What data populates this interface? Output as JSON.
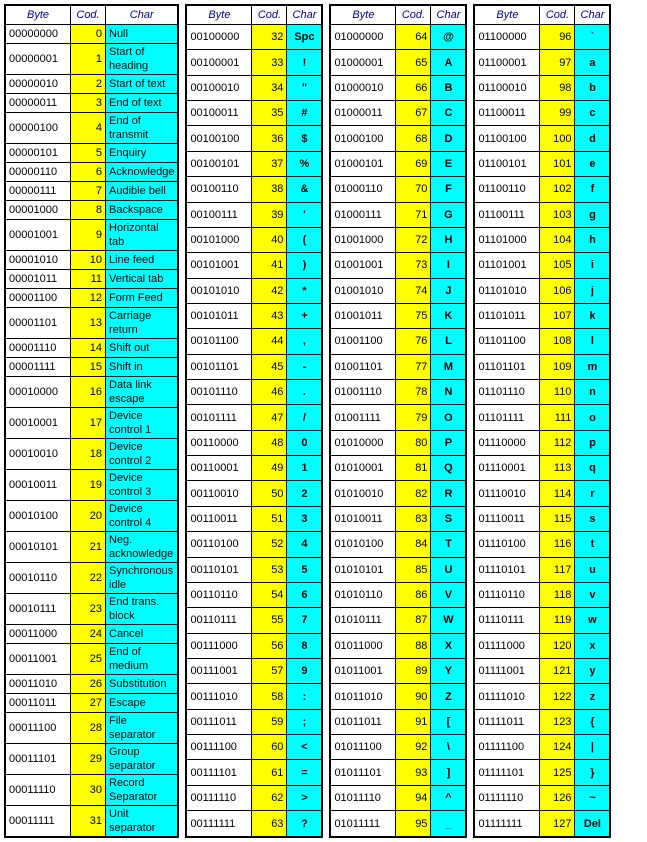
{
  "headers": {
    "byte": "Byte",
    "code": "Cod.",
    "char": "Char"
  },
  "style": {
    "byte_bg": "#ffffff",
    "code_bg": "#ffff00",
    "char_bg": "#00ffff",
    "header_color": "#000099",
    "border_color": "#000000",
    "font_size": 11
  },
  "blocks": [
    {
      "char_centered": false,
      "char_bold": false,
      "rows": [
        {
          "b": "00000000",
          "c": 0,
          "ch": "Null"
        },
        {
          "b": "00000001",
          "c": 1,
          "ch": "Start of heading"
        },
        {
          "b": "00000010",
          "c": 2,
          "ch": "Start of text"
        },
        {
          "b": "00000011",
          "c": 3,
          "ch": "End of text"
        },
        {
          "b": "00000100",
          "c": 4,
          "ch": "End of transmit"
        },
        {
          "b": "00000101",
          "c": 5,
          "ch": "Enquiry"
        },
        {
          "b": "00000110",
          "c": 6,
          "ch": "Acknowledge"
        },
        {
          "b": "00000111",
          "c": 7,
          "ch": "Audible bell"
        },
        {
          "b": "00001000",
          "c": 8,
          "ch": "Backspace"
        },
        {
          "b": "00001001",
          "c": 9,
          "ch": "Horizontal tab"
        },
        {
          "b": "00001010",
          "c": 10,
          "ch": "Line feed"
        },
        {
          "b": "00001011",
          "c": 11,
          "ch": "Vertical tab"
        },
        {
          "b": "00001100",
          "c": 12,
          "ch": "Form Feed"
        },
        {
          "b": "00001101",
          "c": 13,
          "ch": "Carriage return"
        },
        {
          "b": "00001110",
          "c": 14,
          "ch": "Shift out"
        },
        {
          "b": "00001111",
          "c": 15,
          "ch": "Shift in"
        },
        {
          "b": "00010000",
          "c": 16,
          "ch": "Data link escape"
        },
        {
          "b": "00010001",
          "c": 17,
          "ch": "Device control 1"
        },
        {
          "b": "00010010",
          "c": 18,
          "ch": "Device control 2"
        },
        {
          "b": "00010011",
          "c": 19,
          "ch": "Device control 3"
        },
        {
          "b": "00010100",
          "c": 20,
          "ch": "Device control 4"
        },
        {
          "b": "00010101",
          "c": 21,
          "ch": "Neg. acknowledge"
        },
        {
          "b": "00010110",
          "c": 22,
          "ch": "Synchronous idle"
        },
        {
          "b": "00010111",
          "c": 23,
          "ch": "End trans. block"
        },
        {
          "b": "00011000",
          "c": 24,
          "ch": "Cancel"
        },
        {
          "b": "00011001",
          "c": 25,
          "ch": "End of medium"
        },
        {
          "b": "00011010",
          "c": 26,
          "ch": "Substitution"
        },
        {
          "b": "00011011",
          "c": 27,
          "ch": "Escape"
        },
        {
          "b": "00011100",
          "c": 28,
          "ch": "File separator"
        },
        {
          "b": "00011101",
          "c": 29,
          "ch": "Group separator"
        },
        {
          "b": "00011110",
          "c": 30,
          "ch": "Record Separator"
        },
        {
          "b": "00011111",
          "c": 31,
          "ch": "Unit separator"
        }
      ]
    },
    {
      "char_centered": true,
      "char_bold": true,
      "rows": [
        {
          "b": "00100000",
          "c": 32,
          "ch": "Spc"
        },
        {
          "b": "00100001",
          "c": 33,
          "ch": "!"
        },
        {
          "b": "00100010",
          "c": 34,
          "ch": "\""
        },
        {
          "b": "00100011",
          "c": 35,
          "ch": "#"
        },
        {
          "b": "00100100",
          "c": 36,
          "ch": "$"
        },
        {
          "b": "00100101",
          "c": 37,
          "ch": "%"
        },
        {
          "b": "00100110",
          "c": 38,
          "ch": "&"
        },
        {
          "b": "00100111",
          "c": 39,
          "ch": "'"
        },
        {
          "b": "00101000",
          "c": 40,
          "ch": "("
        },
        {
          "b": "00101001",
          "c": 41,
          "ch": ")"
        },
        {
          "b": "00101010",
          "c": 42,
          "ch": "*"
        },
        {
          "b": "00101011",
          "c": 43,
          "ch": "+"
        },
        {
          "b": "00101100",
          "c": 44,
          "ch": ","
        },
        {
          "b": "00101101",
          "c": 45,
          "ch": "-"
        },
        {
          "b": "00101110",
          "c": 46,
          "ch": "."
        },
        {
          "b": "00101111",
          "c": 47,
          "ch": "/"
        },
        {
          "b": "00110000",
          "c": 48,
          "ch": "0"
        },
        {
          "b": "00110001",
          "c": 49,
          "ch": "1"
        },
        {
          "b": "00110010",
          "c": 50,
          "ch": "2"
        },
        {
          "b": "00110011",
          "c": 51,
          "ch": "3"
        },
        {
          "b": "00110100",
          "c": 52,
          "ch": "4"
        },
        {
          "b": "00110101",
          "c": 53,
          "ch": "5"
        },
        {
          "b": "00110110",
          "c": 54,
          "ch": "6"
        },
        {
          "b": "00110111",
          "c": 55,
          "ch": "7"
        },
        {
          "b": "00111000",
          "c": 56,
          "ch": "8"
        },
        {
          "b": "00111001",
          "c": 57,
          "ch": "9"
        },
        {
          "b": "00111010",
          "c": 58,
          "ch": ":"
        },
        {
          "b": "00111011",
          "c": 59,
          "ch": ";"
        },
        {
          "b": "00111100",
          "c": 60,
          "ch": "<"
        },
        {
          "b": "00111101",
          "c": 61,
          "ch": "="
        },
        {
          "b": "00111110",
          "c": 62,
          "ch": ">"
        },
        {
          "b": "00111111",
          "c": 63,
          "ch": "?"
        }
      ]
    },
    {
      "char_centered": true,
      "char_bold": true,
      "rows": [
        {
          "b": "01000000",
          "c": 64,
          "ch": "@"
        },
        {
          "b": "01000001",
          "c": 65,
          "ch": "A"
        },
        {
          "b": "01000010",
          "c": 66,
          "ch": "B"
        },
        {
          "b": "01000011",
          "c": 67,
          "ch": "C"
        },
        {
          "b": "01000100",
          "c": 68,
          "ch": "D"
        },
        {
          "b": "01000101",
          "c": 69,
          "ch": "E"
        },
        {
          "b": "01000110",
          "c": 70,
          "ch": "F"
        },
        {
          "b": "01000111",
          "c": 71,
          "ch": "G"
        },
        {
          "b": "01001000",
          "c": 72,
          "ch": "H"
        },
        {
          "b": "01001001",
          "c": 73,
          "ch": "I"
        },
        {
          "b": "01001010",
          "c": 74,
          "ch": "J"
        },
        {
          "b": "01001011",
          "c": 75,
          "ch": "K"
        },
        {
          "b": "01001100",
          "c": 76,
          "ch": "L"
        },
        {
          "b": "01001101",
          "c": 77,
          "ch": "M"
        },
        {
          "b": "01001110",
          "c": 78,
          "ch": "N"
        },
        {
          "b": "01001111",
          "c": 79,
          "ch": "O"
        },
        {
          "b": "01010000",
          "c": 80,
          "ch": "P"
        },
        {
          "b": "01010001",
          "c": 81,
          "ch": "Q"
        },
        {
          "b": "01010010",
          "c": 82,
          "ch": "R"
        },
        {
          "b": "01010011",
          "c": 83,
          "ch": "S"
        },
        {
          "b": "01010100",
          "c": 84,
          "ch": "T"
        },
        {
          "b": "01010101",
          "c": 85,
          "ch": "U"
        },
        {
          "b": "01010110",
          "c": 86,
          "ch": "V"
        },
        {
          "b": "01010111",
          "c": 87,
          "ch": "W"
        },
        {
          "b": "01011000",
          "c": 88,
          "ch": "X"
        },
        {
          "b": "01011001",
          "c": 89,
          "ch": "Y"
        },
        {
          "b": "01011010",
          "c": 90,
          "ch": "Z"
        },
        {
          "b": "01011011",
          "c": 91,
          "ch": "["
        },
        {
          "b": "01011100",
          "c": 92,
          "ch": "\\"
        },
        {
          "b": "01011101",
          "c": 93,
          "ch": "]"
        },
        {
          "b": "01011110",
          "c": 94,
          "ch": "^"
        },
        {
          "b": "01011111",
          "c": 95,
          "ch": "_"
        }
      ]
    },
    {
      "char_centered": true,
      "char_bold": true,
      "rows": [
        {
          "b": "01100000",
          "c": 96,
          "ch": "`"
        },
        {
          "b": "01100001",
          "c": 97,
          "ch": "a"
        },
        {
          "b": "01100010",
          "c": 98,
          "ch": "b"
        },
        {
          "b": "01100011",
          "c": 99,
          "ch": "c"
        },
        {
          "b": "01100100",
          "c": 100,
          "ch": "d"
        },
        {
          "b": "01100101",
          "c": 101,
          "ch": "e"
        },
        {
          "b": "01100110",
          "c": 102,
          "ch": "f"
        },
        {
          "b": "01100111",
          "c": 103,
          "ch": "g"
        },
        {
          "b": "01101000",
          "c": 104,
          "ch": "h"
        },
        {
          "b": "01101001",
          "c": 105,
          "ch": "i"
        },
        {
          "b": "01101010",
          "c": 106,
          "ch": "j"
        },
        {
          "b": "01101011",
          "c": 107,
          "ch": "k"
        },
        {
          "b": "01101100",
          "c": 108,
          "ch": "l"
        },
        {
          "b": "01101101",
          "c": 109,
          "ch": "m"
        },
        {
          "b": "01101110",
          "c": 110,
          "ch": "n"
        },
        {
          "b": "01101111",
          "c": 111,
          "ch": "o"
        },
        {
          "b": "01110000",
          "c": 112,
          "ch": "p"
        },
        {
          "b": "01110001",
          "c": 113,
          "ch": "q"
        },
        {
          "b": "01110010",
          "c": 114,
          "ch": "r"
        },
        {
          "b": "01110011",
          "c": 115,
          "ch": "s"
        },
        {
          "b": "01110100",
          "c": 116,
          "ch": "t"
        },
        {
          "b": "01110101",
          "c": 117,
          "ch": "u"
        },
        {
          "b": "01110110",
          "c": 118,
          "ch": "v"
        },
        {
          "b": "01110111",
          "c": 119,
          "ch": "w"
        },
        {
          "b": "01111000",
          "c": 120,
          "ch": "x"
        },
        {
          "b": "01111001",
          "c": 121,
          "ch": "y"
        },
        {
          "b": "01111010",
          "c": 122,
          "ch": "z"
        },
        {
          "b": "01111011",
          "c": 123,
          "ch": "{"
        },
        {
          "b": "01111100",
          "c": 124,
          "ch": "|"
        },
        {
          "b": "01111101",
          "c": 125,
          "ch": "}"
        },
        {
          "b": "01111110",
          "c": 126,
          "ch": "~"
        },
        {
          "b": "01111111",
          "c": 127,
          "ch": "Del"
        }
      ]
    }
  ]
}
